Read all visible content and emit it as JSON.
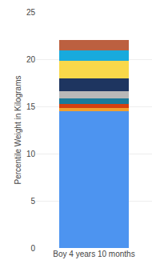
{
  "chart_data": {
    "type": "bar",
    "categories": [
      "Boy 4 years 10 months"
    ],
    "series": [
      {
        "color": "#4d94f0",
        "values": [
          14.5
        ]
      },
      {
        "color": "#f0a030",
        "values": [
          0.35
        ]
      },
      {
        "color": "#d44010",
        "values": [
          0.4
        ]
      },
      {
        "color": "#1a7a9a",
        "values": [
          0.6
        ]
      },
      {
        "color": "#b8b8b8",
        "values": [
          0.75
        ]
      },
      {
        "color": "#1e3560",
        "values": [
          1.4
        ]
      },
      {
        "color": "#f9d84a",
        "values": [
          1.8
        ]
      },
      {
        "color": "#18aadd",
        "values": [
          1.1
        ]
      },
      {
        "color": "#bc6040",
        "values": [
          1.1
        ]
      }
    ],
    "ylabel": "Percentile Weight in Kilograms",
    "ylim": [
      0,
      25
    ],
    "yticks": [
      0,
      5,
      10,
      15,
      20,
      25
    ],
    "stacked": true,
    "grid": true
  }
}
